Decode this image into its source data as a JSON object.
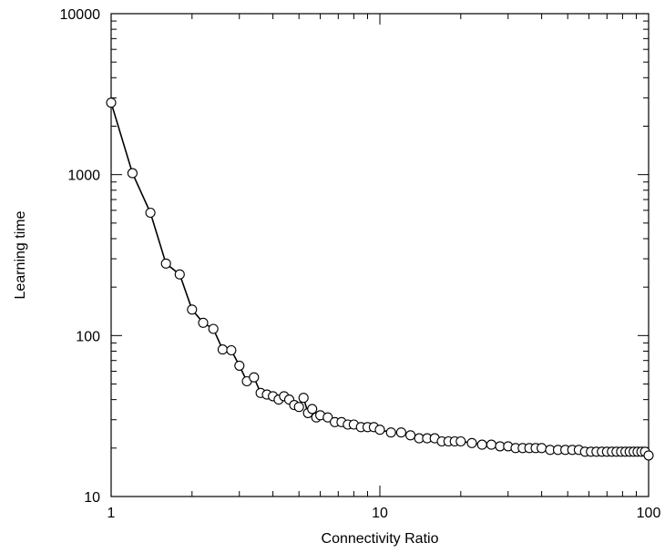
{
  "chart_data": {
    "type": "line",
    "title": "",
    "xlabel": "Connectivity Ratio",
    "ylabel": "Learning time",
    "xscale": "log",
    "yscale": "log",
    "xlim": [
      1,
      100
    ],
    "ylim": [
      10,
      10000
    ],
    "xticks": [
      "1",
      "10",
      "100"
    ],
    "yticks": [
      "10",
      "100",
      "1000",
      "10000"
    ],
    "grid": false,
    "legend": "none",
    "marker": "open-circle",
    "line_color": "#000000",
    "series": [
      {
        "x": [
          1.0,
          1.2,
          1.4,
          1.6,
          1.8,
          2.0,
          2.2,
          2.4,
          2.6,
          2.8,
          3.0,
          3.2,
          3.4,
          3.6,
          3.8,
          4.0,
          4.2,
          4.4,
          4.6,
          4.8,
          5.0,
          5.2,
          5.4,
          5.6,
          5.8,
          6.0,
          6.4,
          6.8,
          7.2,
          7.6,
          8.0,
          8.5,
          9.0,
          9.5,
          10,
          11,
          12,
          13,
          14,
          15,
          16,
          17,
          18,
          19,
          20,
          22,
          24,
          26,
          28,
          30,
          32,
          34,
          36,
          38,
          40,
          43,
          46,
          49,
          52,
          55,
          58,
          61,
          64,
          67,
          70,
          73,
          76,
          79,
          82,
          85,
          88,
          91,
          94,
          97,
          100
        ],
        "y": [
          2800,
          1020,
          580,
          280,
          240,
          145,
          120,
          110,
          82,
          81,
          65,
          52,
          55,
          44,
          43,
          42,
          40,
          42,
          40,
          37,
          36,
          41,
          33,
          35,
          31,
          32,
          31,
          29,
          29,
          28,
          28,
          27,
          27,
          27,
          26,
          25,
          25,
          24,
          23,
          23,
          23,
          22,
          22,
          22,
          22,
          21.5,
          21,
          21,
          20.5,
          20.5,
          20,
          20,
          20,
          20,
          20,
          19.5,
          19.5,
          19.5,
          19.5,
          19.5,
          19,
          19,
          19,
          19,
          19,
          19,
          19,
          19,
          19,
          19,
          19,
          19,
          19,
          19,
          18
        ]
      }
    ]
  }
}
